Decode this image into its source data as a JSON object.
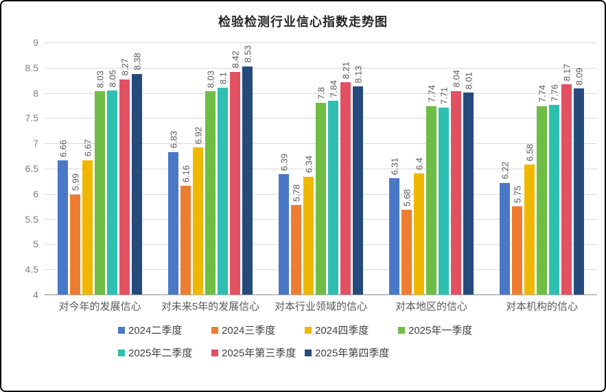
{
  "title": "检验检测行业信心指数走势图",
  "chart_data": {
    "type": "bar",
    "title": "检验检测行业信心指数走势图",
    "categories": [
      "对今年的发展信心",
      "对未来5年的发展信心",
      "对本行业领域的信心",
      "对本地区的信心",
      "对本机构的信心"
    ],
    "series": [
      {
        "name": "2024二季度",
        "color": "#4A78C6",
        "values": [
          6.66,
          6.83,
          6.39,
          6.31,
          6.22
        ]
      },
      {
        "name": "2024三季度",
        "color": "#ED7D31",
        "values": [
          5.99,
          6.16,
          5.78,
          5.68,
          5.75
        ]
      },
      {
        "name": "2024四季度",
        "color": "#EFB700",
        "values": [
          6.67,
          6.92,
          6.34,
          6.4,
          6.58
        ]
      },
      {
        "name": "2025年一季度",
        "color": "#6FBD45",
        "values": [
          8.03,
          8.03,
          7.8,
          7.74,
          7.74
        ]
      },
      {
        "name": "2025年二季度",
        "color": "#2EBFB0",
        "values": [
          8.05,
          8.1,
          7.84,
          7.71,
          7.76
        ]
      },
      {
        "name": "2025年第三季度",
        "color": "#E15162",
        "values": [
          8.27,
          8.42,
          8.21,
          8.04,
          8.17
        ]
      },
      {
        "name": "2025年第四季度",
        "color": "#254B7D",
        "values": [
          8.38,
          8.53,
          8.13,
          8.01,
          8.09
        ]
      }
    ],
    "ylim": [
      4,
      9
    ],
    "ytick_step": 0.5,
    "yticks": [
      "9",
      "8.5",
      "8",
      "7.5",
      "7",
      "6.5",
      "6",
      "5.5",
      "5",
      "4.5",
      "4"
    ],
    "grid": true,
    "data_labels": "rotated-vertical",
    "legend_position": "bottom",
    "legend_rows": [
      [
        0,
        1,
        2,
        3
      ],
      [
        4,
        5,
        6
      ]
    ],
    "colors_meta": {
      "gridline": "#D9D9D9",
      "axis_baseline": "#BFBFBF",
      "tick_label": "#7F7F7F",
      "data_label": "#595959",
      "category_label": "#595959",
      "legend_text": "#404040",
      "title_text": "#262626",
      "frame_border": "#000000"
    }
  }
}
